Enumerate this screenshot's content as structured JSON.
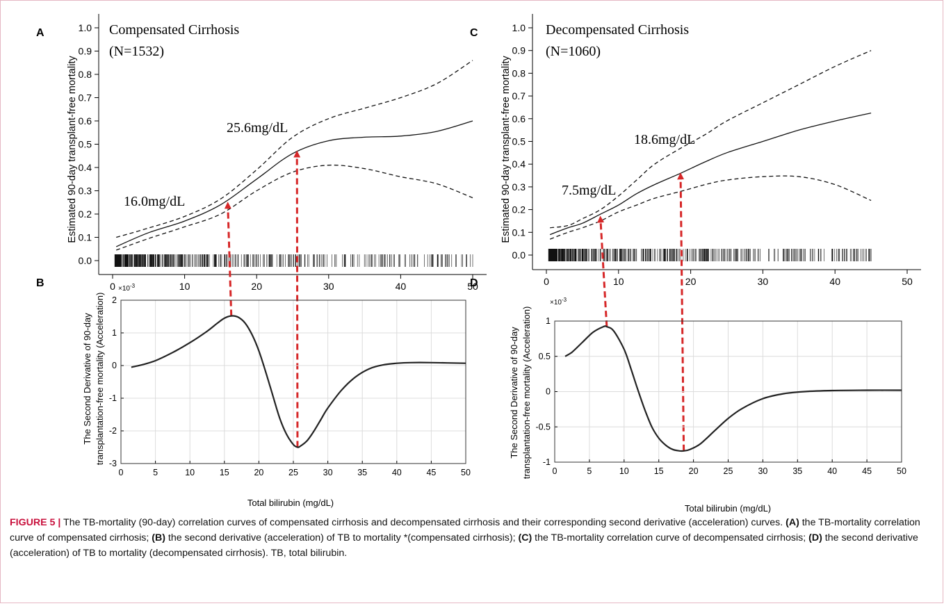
{
  "colors": {
    "arrow": "#d62728",
    "curve": "#222222",
    "grid": "#dcdcdc",
    "caption_label": "#c8103c"
  },
  "panels": {
    "A": {
      "letter": "A",
      "title_line1": "Compensated Cirrhosis",
      "title_line2": "(N=1532)",
      "ylabel": "Estimated 90-day transplant-free mortality",
      "yticks": [
        "0.0",
        "0.1",
        "0.2",
        "0.3",
        "0.4",
        "0.5",
        "0.6",
        "0.7",
        "0.8",
        "0.9",
        "1.0"
      ],
      "xticks": [
        "0",
        "10",
        "20",
        "30",
        "40",
        "50"
      ],
      "annotations": [
        "16.0mg/dL",
        "25.6mg/dL"
      ]
    },
    "B": {
      "letter": "B",
      "exponent": "×10",
      "exponent_power": "-3",
      "ylabel_line1": "The Second Derivative of 90-day",
      "ylabel_line2": "transplantation-free mortality (Acceleration)",
      "yticks": [
        "2",
        "1",
        "0",
        "-1",
        "-2",
        "-3"
      ],
      "xticks": [
        "0",
        "5",
        "10",
        "15",
        "20",
        "25",
        "30",
        "35",
        "40",
        "45",
        "50"
      ],
      "xlabel": "Total bilirubin (mg/dL)"
    },
    "C": {
      "letter": "C",
      "title_line1": "Decompensated Cirrhosis",
      "title_line2": "(N=1060)",
      "ylabel": "Estimated 90-day transplant-free mortality",
      "yticks": [
        "0.0",
        "0.1",
        "0.2",
        "0.3",
        "0.4",
        "0.5",
        "0.6",
        "0.7",
        "0.8",
        "0.9",
        "1.0"
      ],
      "xticks": [
        "0",
        "10",
        "20",
        "30",
        "40",
        "50"
      ],
      "annotations": [
        "7.5mg/dL",
        "18.6mg/dL"
      ]
    },
    "D": {
      "letter": "D",
      "exponent": "×10",
      "exponent_power": "-3",
      "ylabel_line1": "The Second Derivative of 90-day",
      "ylabel_line2": "transplantation-free mortality (Acceleration)",
      "yticks": [
        "1",
        "0.5",
        "0",
        "-0.5",
        "-1"
      ],
      "xticks": [
        "0",
        "5",
        "10",
        "15",
        "20",
        "25",
        "30",
        "35",
        "40",
        "45",
        "50"
      ],
      "xlabel": "Total bilirubin (mg/dL)"
    }
  },
  "caption": {
    "figure_label": "FIGURE 5 |",
    "intro": " The TB-mortality (90-day) correlation curves of compensated cirrhosis and decompensated cirrhosis and their corresponding second derivative (acceleration) curves. ",
    "a_label": "(A)",
    "a_text": " the TB-mortality correlation curve of compensated cirrhosis; ",
    "b_label": "(B)",
    "b_text": " the second derivative (acceleration) of TB to mortality *(compensated cirrhosis); ",
    "c_label": "(C)",
    "c_text": " the TB-mortality correlation curve of decompensated cirrhosis; ",
    "d_label": "(D)",
    "d_text": " the second derivative (acceleration) of TB to mortality (decompensated cirrhosis). TB, total bilirubin."
  },
  "chart_data": [
    {
      "panel": "A",
      "type": "line",
      "xlim": [
        0,
        50
      ],
      "ylim": [
        0,
        1.0
      ],
      "series": [
        {
          "role": "estimate",
          "style": "solid",
          "x": [
            0.5,
            5,
            10,
            15,
            20,
            25,
            30,
            35,
            40,
            45,
            50
          ],
          "y": [
            0.06,
            0.12,
            0.17,
            0.24,
            0.35,
            0.46,
            0.515,
            0.53,
            0.535,
            0.555,
            0.6
          ]
        },
        {
          "role": "upper_ci",
          "style": "dashed",
          "x": [
            0.5,
            5,
            10,
            15,
            20,
            25,
            30,
            35,
            40,
            45,
            50
          ],
          "y": [
            0.1,
            0.14,
            0.19,
            0.265,
            0.39,
            0.53,
            0.61,
            0.655,
            0.7,
            0.76,
            0.86
          ]
        },
        {
          "role": "lower_ci",
          "style": "dashed",
          "x": [
            0.5,
            5,
            10,
            15,
            20,
            25,
            30,
            35,
            40,
            45,
            50
          ],
          "y": [
            0.045,
            0.095,
            0.145,
            0.2,
            0.3,
            0.38,
            0.41,
            0.395,
            0.36,
            0.33,
            0.27
          ]
        }
      ],
      "markers": [
        {
          "label": "16.0mg/dL",
          "x": 16.0,
          "y": 0.25
        },
        {
          "label": "25.6mg/dL",
          "x": 25.6,
          "y": 0.47
        }
      ],
      "rug": true
    },
    {
      "panel": "B",
      "type": "line",
      "xlim": [
        0,
        50
      ],
      "ylim": [
        -3,
        2
      ],
      "grid": true,
      "scale": "×10^-3",
      "series": [
        {
          "role": "second_derivative",
          "style": "solid",
          "x": [
            1.5,
            3,
            5,
            7.5,
            10,
            12.5,
            14,
            15,
            16,
            17,
            18,
            19,
            20,
            21,
            22,
            23,
            24,
            25,
            25.6,
            26,
            27,
            28,
            29,
            30,
            32,
            34,
            36,
            38,
            40,
            42,
            45,
            50
          ],
          "y": [
            -0.05,
            0.02,
            0.15,
            0.4,
            0.7,
            1.05,
            1.3,
            1.45,
            1.52,
            1.48,
            1.3,
            0.95,
            0.45,
            -0.2,
            -0.9,
            -1.6,
            -2.1,
            -2.42,
            -2.5,
            -2.47,
            -2.3,
            -2.0,
            -1.65,
            -1.3,
            -0.75,
            -0.35,
            -0.1,
            0.02,
            0.07,
            0.09,
            0.09,
            0.07
          ]
        }
      ]
    },
    {
      "panel": "C",
      "type": "line",
      "xlim": [
        0,
        50
      ],
      "ylim": [
        0,
        1.0
      ],
      "series": [
        {
          "role": "estimate",
          "style": "solid",
          "x": [
            0.5,
            3,
            5,
            7.5,
            10,
            12.5,
            15,
            18.6,
            22,
            25,
            30,
            35,
            40,
            45
          ],
          "y": [
            0.09,
            0.12,
            0.14,
            0.18,
            0.22,
            0.27,
            0.31,
            0.36,
            0.41,
            0.45,
            0.5,
            0.55,
            0.59,
            0.625
          ]
        },
        {
          "role": "upper_ci",
          "style": "dashed",
          "x": [
            0.5,
            3,
            5,
            7.5,
            10,
            12.5,
            15,
            18.6,
            22,
            25,
            30,
            35,
            40,
            45
          ],
          "y": [
            0.12,
            0.13,
            0.16,
            0.2,
            0.26,
            0.33,
            0.4,
            0.47,
            0.53,
            0.59,
            0.67,
            0.75,
            0.83,
            0.9
          ]
        },
        {
          "role": "lower_ci",
          "style": "dashed",
          "x": [
            0.5,
            3,
            5,
            7.5,
            10,
            12.5,
            15,
            18.6,
            22,
            25,
            30,
            35,
            40,
            45
          ],
          "y": [
            0.07,
            0.1,
            0.12,
            0.15,
            0.19,
            0.22,
            0.25,
            0.28,
            0.31,
            0.33,
            0.345,
            0.345,
            0.31,
            0.24
          ]
        }
      ],
      "markers": [
        {
          "label": "7.5mg/dL",
          "x": 7.5,
          "y": 0.17
        },
        {
          "label": "18.6mg/dL",
          "x": 18.6,
          "y": 0.36
        }
      ],
      "rug": true
    },
    {
      "panel": "D",
      "type": "line",
      "xlim": [
        0,
        50
      ],
      "ylim": [
        -1,
        1
      ],
      "grid": true,
      "scale": "×10^-3",
      "series": [
        {
          "role": "second_derivative",
          "style": "solid",
          "x": [
            1.5,
            2.5,
            4,
            5.5,
            7,
            7.5,
            8.5,
            10,
            11,
            12,
            13,
            14,
            15,
            16,
            17,
            18,
            18.6,
            19.5,
            21,
            23,
            25,
            27,
            30,
            33,
            36,
            40,
            45,
            50
          ],
          "y": [
            0.5,
            0.56,
            0.7,
            0.84,
            0.92,
            0.92,
            0.86,
            0.6,
            0.32,
            0.02,
            -0.26,
            -0.5,
            -0.66,
            -0.76,
            -0.82,
            -0.84,
            -0.84,
            -0.82,
            -0.74,
            -0.56,
            -0.38,
            -0.24,
            -0.1,
            -0.03,
            0.0,
            0.015,
            0.02,
            0.02
          ]
        }
      ]
    }
  ]
}
